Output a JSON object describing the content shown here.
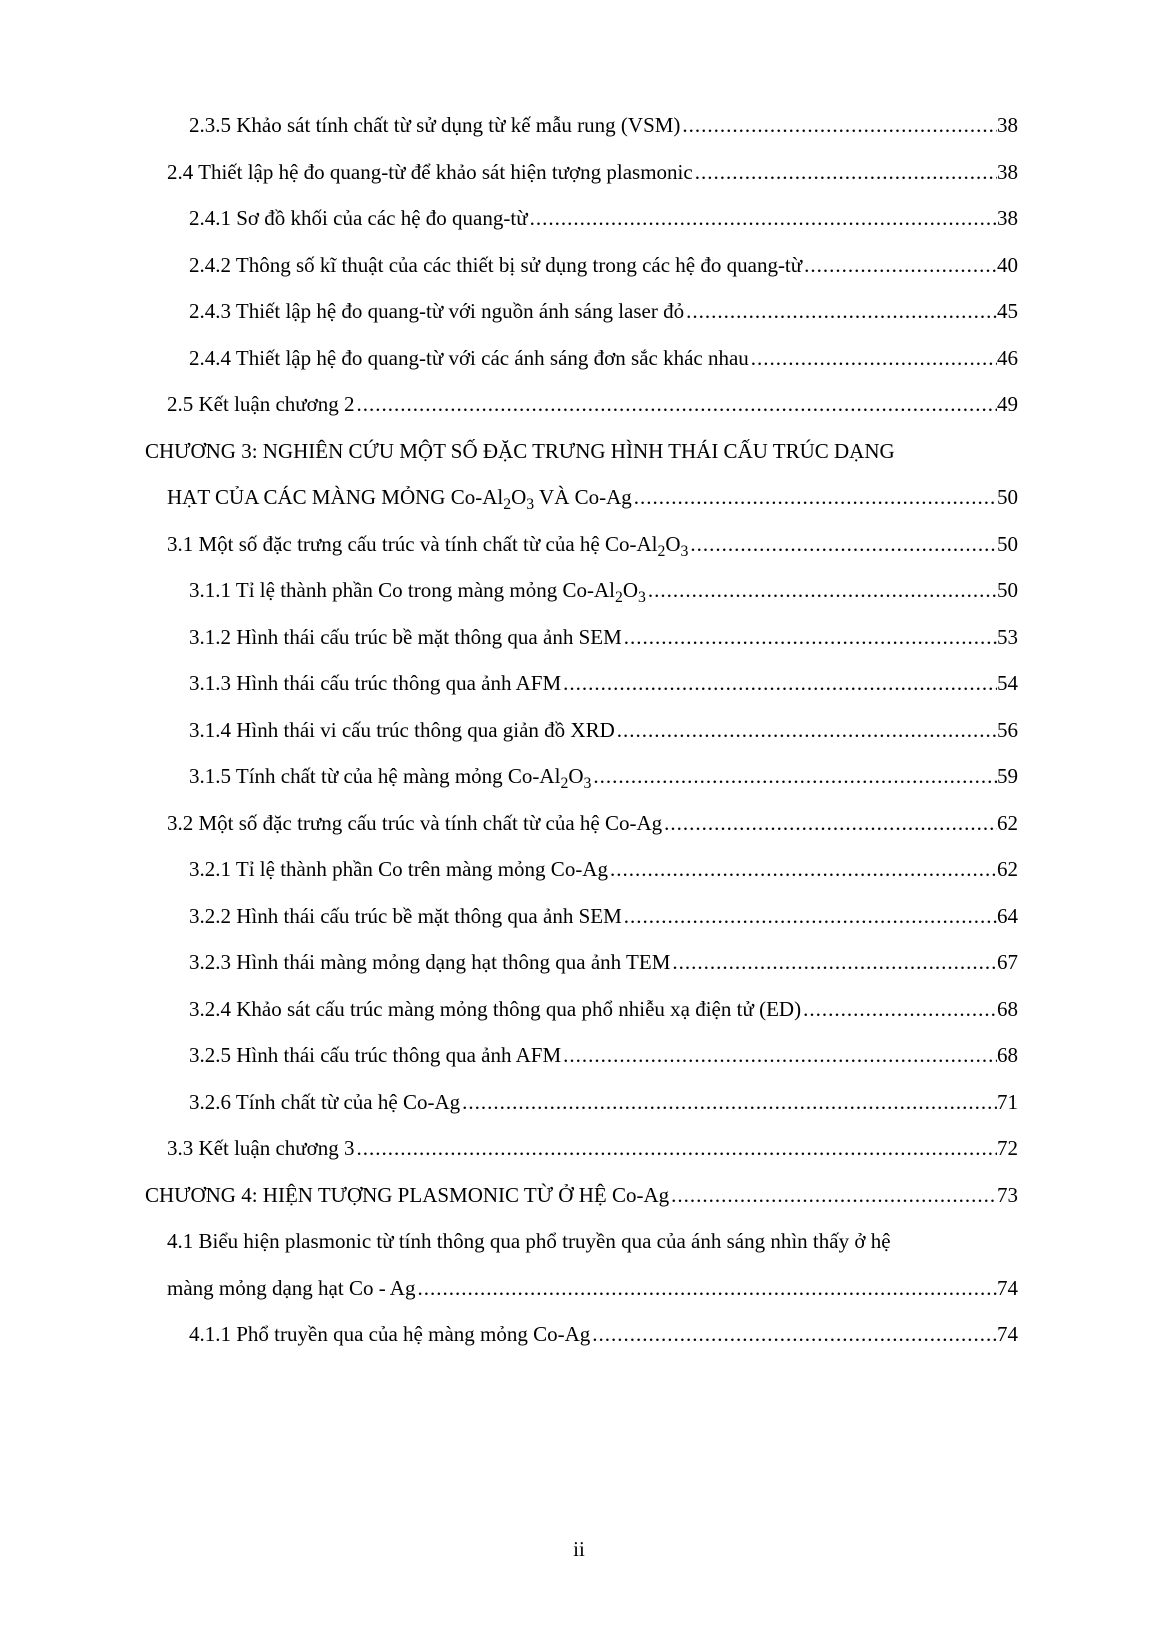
{
  "page_footer": "ii",
  "entries": [
    {
      "indent": 2,
      "label": "2.3.5 Khảo sát tính chất từ sử dụng từ kế mẫu rung (VSM)",
      "page": "38"
    },
    {
      "indent": 1,
      "label": "2.4 Thiết lập hệ đo quang-từ để khảo sát hiện tượng plasmonic",
      "page": "38"
    },
    {
      "indent": 2,
      "label": "2.4.1 Sơ đồ khối của các hệ đo quang-từ",
      "page": "38"
    },
    {
      "indent": 2,
      "label": "2.4.2 Thông số kĩ thuật của các thiết bị sử dụng trong các hệ đo quang-từ",
      "page": "40"
    },
    {
      "indent": 2,
      "label": "2.4.3 Thiết lập hệ đo quang-từ với nguồn ánh sáng laser đỏ",
      "page": "45"
    },
    {
      "indent": 2,
      "label": "2.4.4 Thiết lập hệ đo quang-từ với các ánh sáng đơn sắc khác nhau",
      "page": "46"
    },
    {
      "indent": 1,
      "label": "2.5 Kết luận chương 2",
      "page": "49"
    },
    {
      "indent": 0,
      "wrap_prefix": "CHƯƠNG 3: NGHIÊN CỨU MỘT SỐ ĐẶC TRƯNG HÌNH THÁI CẤU TRÚC DẠNG",
      "label_html": "HẠT CỦA CÁC MÀNG MỎNG Co-Al<sub>2</sub>O<sub>3</sub> VÀ Co-Ag",
      "page": "50",
      "cont_indent": 1
    },
    {
      "indent": 1,
      "label_html": "3.1 Một số đặc trưng cấu trúc và tính chất từ của hệ Co-Al<sub>2</sub>O<sub>3</sub>",
      "page": "50"
    },
    {
      "indent": 2,
      "label_html": "3.1.1 Tỉ lệ thành phần Co trong màng mỏng Co-Al<sub>2</sub>O<sub>3</sub>",
      "page": "50"
    },
    {
      "indent": 2,
      "label": "3.1.2 Hình thái cấu trúc bề mặt thông qua ảnh SEM",
      "page": "53"
    },
    {
      "indent": 2,
      "label": "3.1.3 Hình thái cấu trúc thông qua ảnh AFM",
      "page": "54"
    },
    {
      "indent": 2,
      "label": "3.1.4 Hình thái vi cấu trúc thông qua giản đồ XRD",
      "page": "56"
    },
    {
      "indent": 2,
      "label_html": "3.1.5 Tính chất từ của hệ màng mỏng Co-Al<sub>2</sub>O<sub>3</sub>",
      "page": "59"
    },
    {
      "indent": 1,
      "label": "3.2 Một số đặc trưng cấu trúc và tính chất từ của hệ Co-Ag",
      "page": "62"
    },
    {
      "indent": 2,
      "label": "3.2.1 Tỉ lệ thành phần Co trên màng mỏng Co-Ag",
      "page": "62"
    },
    {
      "indent": 2,
      "label": "3.2.2 Hình thái cấu trúc bề mặt thông qua ảnh SEM",
      "page": "64"
    },
    {
      "indent": 2,
      "label": "3.2.3 Hình thái màng mỏng dạng hạt thông qua ảnh TEM",
      "page": "67"
    },
    {
      "indent": 2,
      "label": "3.2.4 Khảo sát cấu trúc màng mỏng thông qua phổ nhiễu xạ điện tử (ED)",
      "page": "68"
    },
    {
      "indent": 2,
      "label": "3.2.5 Hình thái cấu trúc thông qua ảnh AFM",
      "page": "68"
    },
    {
      "indent": 2,
      "label": "3.2.6 Tính chất từ của hệ Co-Ag",
      "page": "71"
    },
    {
      "indent": 1,
      "label": "3.3 Kết luận chương 3",
      "page": "72"
    },
    {
      "indent": 0,
      "label": "CHƯƠNG 4: HIỆN TƯỢNG PLASMONIC TỪ Ở HỆ Co-Ag",
      "page": "73"
    },
    {
      "indent": 1,
      "wrap_prefix": "4.1 Biểu hiện plasmonic từ tính thông qua phổ truyền qua của ánh sáng nhìn thấy ở hệ",
      "label": "màng mỏng dạng hạt Co - Ag",
      "page": "74",
      "cont_indent": 1
    },
    {
      "indent": 2,
      "label": "4.1.1 Phổ truyền qua của hệ màng mỏng Co-Ag",
      "page": "74"
    }
  ]
}
